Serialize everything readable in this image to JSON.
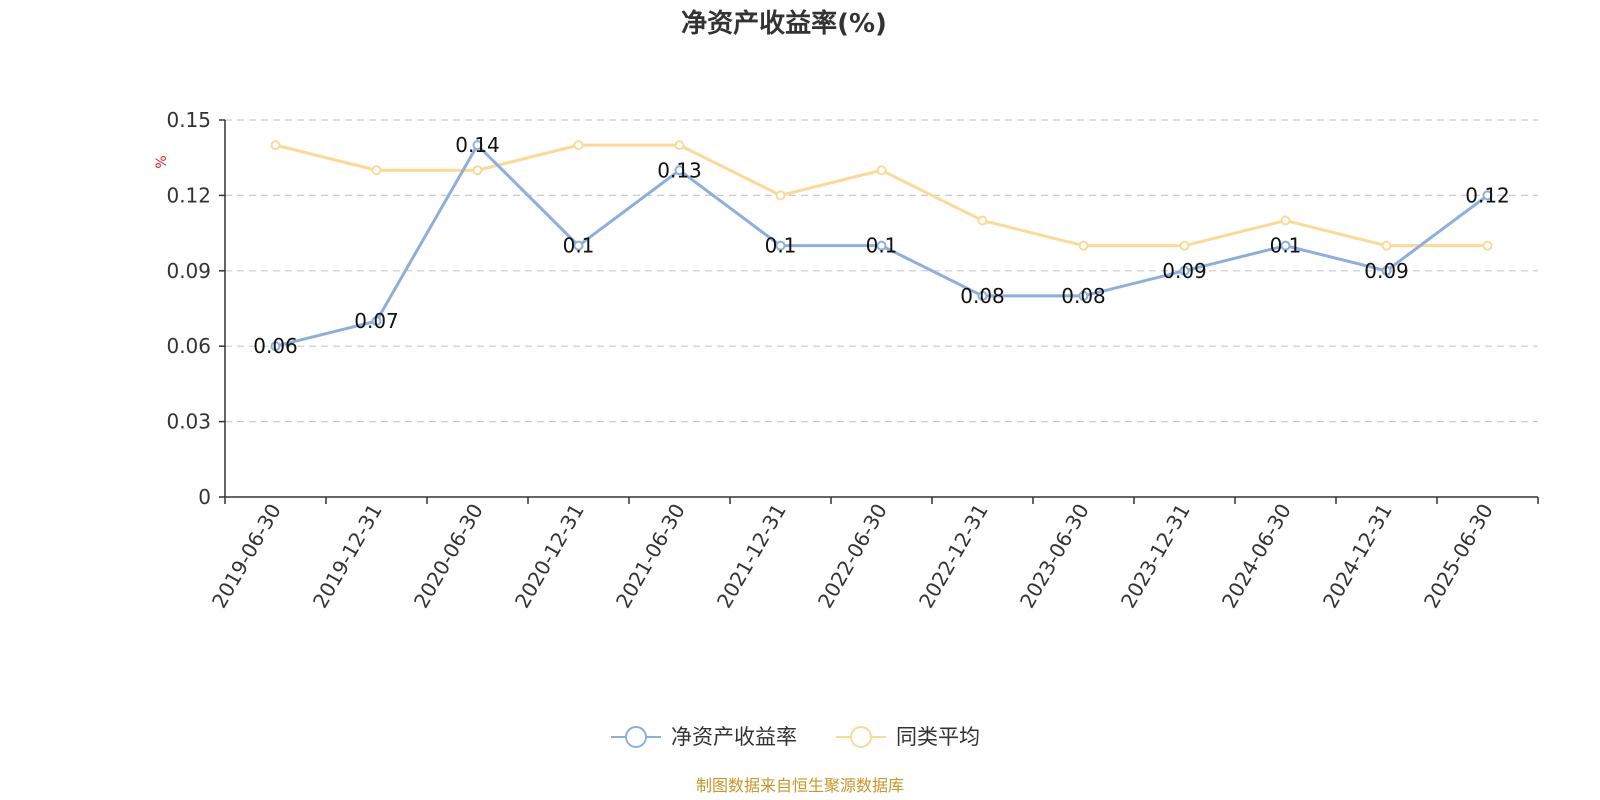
{
  "chart_data": {
    "type": "line",
    "title": "净资产收益率(%)",
    "ylabel": "%",
    "ylim": [
      0,
      0.15
    ],
    "yticks": [
      "0",
      "0.03",
      "0.06",
      "0.09",
      "0.12",
      "0.15"
    ],
    "ytick_values": [
      0,
      0.03,
      0.06,
      0.09,
      0.12,
      0.15
    ],
    "categories": [
      "2019-06-30",
      "2019-12-31",
      "2020-06-30",
      "2020-12-31",
      "2021-06-30",
      "2021-12-31",
      "2022-06-30",
      "2022-12-31",
      "2023-06-30",
      "2023-12-31",
      "2024-06-30",
      "2024-12-31",
      "2025-06-30"
    ],
    "series": [
      {
        "name": "净资产收益率",
        "color": "#8eaedc",
        "values": [
          0.06,
          0.07,
          0.14,
          0.1,
          0.13,
          0.1,
          0.1,
          0.08,
          0.08,
          0.09,
          0.1,
          0.09,
          0.12
        ],
        "labels": [
          "0.06",
          "0.07",
          "0.14",
          "0.1",
          "0.13",
          "0.1",
          "0.1",
          "0.08",
          "0.08",
          "0.09",
          "0.1",
          "0.09",
          "0.12"
        ]
      },
      {
        "name": "同类平均",
        "color": "#fcd999",
        "values": [
          0.14,
          0.13,
          0.13,
          0.14,
          0.14,
          0.12,
          0.13,
          0.11,
          0.1,
          0.1,
          0.11,
          0.1,
          0.1
        ]
      }
    ],
    "grid": true,
    "legend_position": "bottom-center",
    "source": "制图数据来自恒生聚源数据库"
  }
}
